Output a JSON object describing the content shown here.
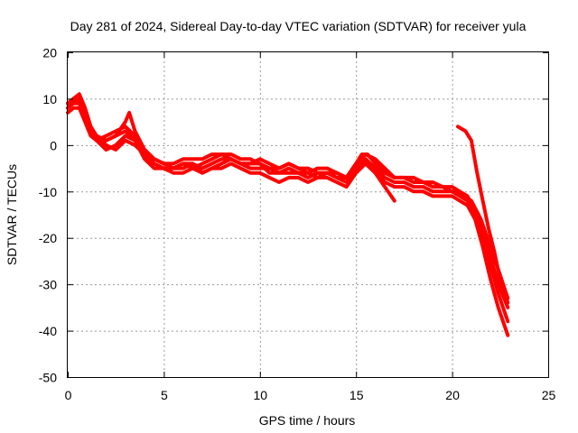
{
  "chart_data": {
    "type": "line",
    "title": "Day 281 of 2024, Sidereal Day-to-day VTEC variation (SDTVAR) for receiver yula",
    "xlabel": "GPS time / hours",
    "ylabel": "SDTVAR / TECUs",
    "xlim": [
      0,
      25
    ],
    "ylim": [
      -50,
      20
    ],
    "xticks": [
      0,
      5,
      10,
      15,
      20,
      25
    ],
    "yticks": [
      -50,
      -40,
      -30,
      -20,
      -10,
      0,
      10,
      20
    ],
    "grid": true,
    "color": "#ff0000",
    "series": [
      {
        "name": "track-1",
        "x": [
          0.0,
          0.3,
          0.6,
          0.9,
          1.2,
          1.5,
          2.0,
          2.5,
          3.0,
          3.2,
          3.5,
          4.0,
          4.5,
          5.0,
          5.5,
          6.0,
          6.5,
          7.0,
          7.5,
          8.0,
          8.5,
          9.0,
          9.5,
          10.0,
          10.5,
          11.0,
          11.5,
          12.0,
          12.5,
          13.0,
          13.5,
          14.0,
          14.5,
          15.0,
          15.3,
          15.6,
          16.0,
          16.5,
          17.0,
          17.5,
          18.0,
          18.5,
          19.0,
          19.5,
          20.0,
          20.3,
          20.6,
          21.0,
          21.5,
          22.0,
          22.5,
          22.9
        ],
        "y": [
          9,
          10,
          11,
          8,
          4,
          2,
          1,
          2,
          5,
          7,
          3,
          -1,
          -3,
          -4,
          -5,
          -4,
          -5,
          -4,
          -3,
          -2,
          -3,
          -4,
          -4,
          -3,
          -4,
          -5,
          -4,
          -5,
          -6,
          -5,
          -5,
          -6,
          -7,
          -4,
          -2,
          -2,
          -4,
          -6,
          -7,
          -7,
          -8,
          -8,
          -9,
          -9,
          -10,
          -10,
          -11,
          -12,
          -16,
          -22,
          -28,
          -33
        ]
      },
      {
        "name": "track-2",
        "x": [
          0.0,
          0.3,
          0.6,
          0.9,
          1.2,
          1.5,
          2.0,
          2.5,
          3.0,
          3.5,
          4.0,
          4.5,
          5.0,
          5.5,
          6.0,
          6.5,
          7.0,
          7.5,
          8.0,
          8.5,
          9.0,
          9.5,
          10.0,
          10.5,
          11.0,
          11.5,
          12.0,
          12.5,
          13.0,
          13.5,
          14.0,
          14.5,
          15.0,
          15.5,
          16.0,
          16.5,
          17.0,
          17.5,
          18.0,
          18.5,
          19.0,
          19.5,
          20.0,
          20.4,
          20.8,
          21.2,
          21.6,
          22.0,
          22.4,
          22.9
        ],
        "y": [
          8,
          9,
          9,
          6,
          3,
          1,
          2,
          3,
          4,
          2,
          -2,
          -4,
          -5,
          -5,
          -5,
          -4,
          -6,
          -5,
          -4,
          -3,
          -4,
          -5,
          -5,
          -5,
          -6,
          -6,
          -6,
          -7,
          -6,
          -6,
          -7,
          -8,
          -5,
          -3,
          -5,
          -7,
          -8,
          -8,
          -9,
          -9,
          -10,
          -10,
          -10,
          -11,
          -12,
          -15,
          -20,
          -26,
          -32,
          -38
        ]
      },
      {
        "name": "track-3",
        "x": [
          0.0,
          0.3,
          0.6,
          0.9,
          1.2,
          1.5,
          2.0,
          2.5,
          3.0,
          3.5,
          4.0,
          4.5,
          5.0,
          5.5,
          6.0,
          6.5,
          7.0,
          7.5,
          8.0,
          8.5,
          9.0,
          9.5,
          10.0,
          10.5,
          11.0,
          11.5,
          12.0,
          12.5,
          13.0,
          13.5,
          14.0,
          14.5,
          15.0,
          15.5,
          16.0,
          16.5,
          17.0,
          17.5,
          18.0,
          18.5,
          19.0,
          19.5,
          20.0,
          20.4,
          20.8,
          21.2,
          21.6,
          22.0,
          22.4,
          22.9
        ],
        "y": [
          7,
          8,
          8,
          5,
          2,
          1,
          1,
          2,
          3,
          1,
          -3,
          -5,
          -5,
          -6,
          -6,
          -5,
          -6,
          -5,
          -5,
          -4,
          -5,
          -6,
          -6,
          -7,
          -8,
          -7,
          -7,
          -8,
          -7,
          -7,
          -8,
          -9,
          -6,
          -4,
          -6,
          -8,
          -9,
          -9,
          -10,
          -10,
          -11,
          -11,
          -11,
          -12,
          -13,
          -16,
          -22,
          -29,
          -35,
          -41
        ]
      },
      {
        "name": "track-4",
        "x": [
          0.0,
          0.3,
          0.6,
          0.9,
          1.2,
          1.5,
          2.0,
          2.5,
          3.0,
          3.5,
          4.0,
          4.5,
          5.0,
          5.5,
          6.0,
          6.5,
          7.0,
          7.5,
          8.0,
          8.5,
          9.0,
          9.5,
          10.0,
          10.5,
          11.0,
          11.5,
          12.0,
          12.5,
          13.0,
          13.5,
          14.0,
          14.5,
          15.0,
          15.5,
          16.0,
          16.5,
          17.0,
          17.5,
          18.0,
          18.5,
          19.0,
          19.5,
          20.0,
          20.4,
          20.8,
          21.2,
          21.6,
          22.0,
          22.4,
          22.9
        ],
        "y": [
          9,
          9,
          10,
          7,
          3,
          2,
          0,
          -1,
          1,
          0,
          -2,
          -3,
          -4,
          -4,
          -3,
          -3,
          -3,
          -2,
          -2,
          -2,
          -3,
          -3,
          -4,
          -5,
          -5,
          -4,
          -5,
          -5,
          -6,
          -6,
          -6,
          -7,
          -4,
          -2,
          -3,
          -5,
          -7,
          -7,
          -7,
          -8,
          -8,
          -9,
          -9,
          -10,
          -11,
          -14,
          -19,
          -24,
          -30,
          -35
        ]
      },
      {
        "name": "track-5",
        "x": [
          0.0,
          0.3,
          0.6,
          0.9,
          1.2,
          1.5,
          2.0,
          2.5,
          3.0,
          3.5,
          4.0,
          4.5,
          5.0,
          5.5,
          6.0,
          6.5,
          7.0,
          7.5,
          8.0,
          8.5,
          9.0,
          9.5,
          10.0,
          10.5,
          11.0,
          11.5,
          12.0,
          12.5,
          13.0,
          13.5,
          14.0,
          14.5,
          15.0,
          15.5,
          16.0,
          16.5,
          17.0
        ],
        "y": [
          8,
          10,
          9,
          6,
          3,
          1,
          -1,
          0,
          2,
          1,
          -1,
          -3,
          -4,
          -5,
          -4,
          -4,
          -5,
          -4,
          -3,
          -3,
          -4,
          -4,
          -4,
          -6,
          -6,
          -5,
          -6,
          -6,
          -7,
          -6,
          -7,
          -7,
          -5,
          -3,
          -6,
          -9,
          -12
        ]
      },
      {
        "name": "track-6",
        "x": [
          20.3,
          20.7,
          21.0,
          21.3,
          21.6,
          21.9,
          22.2,
          22.5,
          22.9
        ],
        "y": [
          4,
          3,
          1,
          -6,
          -12,
          -18,
          -23,
          -29,
          -34
        ]
      }
    ]
  }
}
